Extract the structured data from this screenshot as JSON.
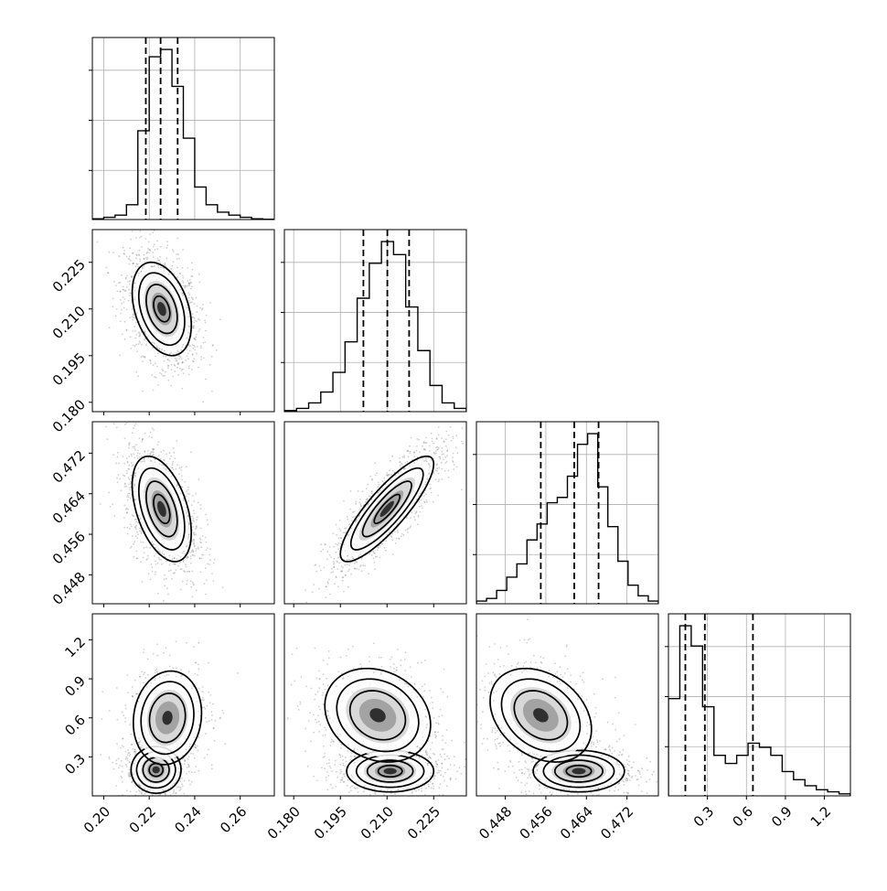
{
  "chart_data": {
    "type": "corner",
    "colors": {
      "line": "#000000",
      "grid": "#b0b0b0",
      "points": "#555555"
    },
    "grid": true,
    "params": [
      {
        "range": [
          0.195,
          0.275
        ],
        "ticks": [
          "0.20",
          "0.22",
          "0.24",
          "0.26"
        ],
        "tick_values": [
          0.2,
          0.22,
          0.24,
          0.26
        ],
        "quantiles": [
          0.2185,
          0.225,
          0.2325
        ]
      },
      {
        "range": [
          0.177,
          0.2355
        ],
        "ticks": [
          "0.180",
          "0.195",
          "0.210",
          "0.225"
        ],
        "tick_values": [
          0.18,
          0.195,
          0.21,
          0.225
        ],
        "quantiles": [
          0.2024,
          0.2101,
          0.2171
        ]
      },
      {
        "range": [
          0.4423,
          0.4782
        ],
        "ticks": [
          "0.448",
          "0.456",
          "0.464",
          "0.472"
        ],
        "tick_values": [
          0.448,
          0.456,
          0.464,
          0.472
        ],
        "quantiles": [
          0.455,
          0.4616,
          0.4664
        ]
      },
      {
        "range": [
          0.0,
          1.4
        ],
        "ticks": [
          "0.3",
          "0.6",
          "0.9",
          "1.2"
        ],
        "tick_values": [
          0.3,
          0.6,
          0.9,
          1.2
        ],
        "quantiles": [
          0.13,
          0.28,
          0.65
        ]
      }
    ],
    "histograms": [
      {
        "values": [
          0.5,
          1.5,
          3,
          10,
          60,
          110,
          115,
          90,
          55,
          22,
          10,
          5,
          3,
          1.5,
          0.5,
          0.2
        ]
      },
      {
        "values": [
          0.5,
          1.5,
          4,
          9,
          18,
          32,
          52,
          68,
          78,
          72,
          48,
          28,
          12,
          4,
          1.5
        ]
      },
      {
        "values": [
          1,
          2,
          5,
          10,
          15,
          24,
          30,
          38,
          40,
          48,
          60,
          64,
          44,
          29,
          16,
          7,
          3,
          1
        ]
      },
      {
        "values": [
          24,
          42,
          37,
          22,
          10,
          8,
          10,
          13,
          12,
          10,
          6,
          4,
          2.5,
          1.5,
          1,
          0.5
        ]
      }
    ],
    "pairs": [
      {
        "row": 1,
        "col": 0,
        "mean": [
          0.2255,
          0.21
        ],
        "sd": [
          0.0065,
          0.0075
        ],
        "rho": -0.35
      },
      {
        "row": 2,
        "col": 0,
        "mean": [
          0.2255,
          0.461
        ],
        "sd": [
          0.0065,
          0.0052
        ],
        "rho": -0.45
      },
      {
        "row": 2,
        "col": 1,
        "mean": [
          0.21,
          0.461
        ],
        "sd": [
          0.0075,
          0.0052
        ],
        "rho": 0.85
      },
      {
        "row": 3,
        "col": 0,
        "modes": [
          {
            "mean": [
              0.223,
              0.2
            ],
            "sd": [
              0.0055,
              0.09
            ],
            "rho": 0.0,
            "w": 0.55
          },
          {
            "mean": [
              0.228,
              0.6
            ],
            "sd": [
              0.0075,
              0.18
            ],
            "rho": 0.1,
            "w": 0.45
          }
        ]
      },
      {
        "row": 3,
        "col": 1,
        "modes": [
          {
            "mean": [
              0.211,
              0.19
            ],
            "sd": [
              0.007,
              0.08
            ],
            "rho": 0.0,
            "w": 0.55
          },
          {
            "mean": [
              0.207,
              0.62
            ],
            "sd": [
              0.0085,
              0.18
            ],
            "rho": -0.2,
            "w": 0.45
          }
        ]
      },
      {
        "row": 3,
        "col": 2,
        "modes": [
          {
            "mean": [
              0.4625,
              0.19
            ],
            "sd": [
              0.0045,
              0.08
            ],
            "rho": 0.0,
            "w": 0.55
          },
          {
            "mean": [
              0.455,
              0.62
            ],
            "sd": [
              0.005,
              0.18
            ],
            "rho": -0.3,
            "w": 0.45
          }
        ]
      }
    ]
  }
}
